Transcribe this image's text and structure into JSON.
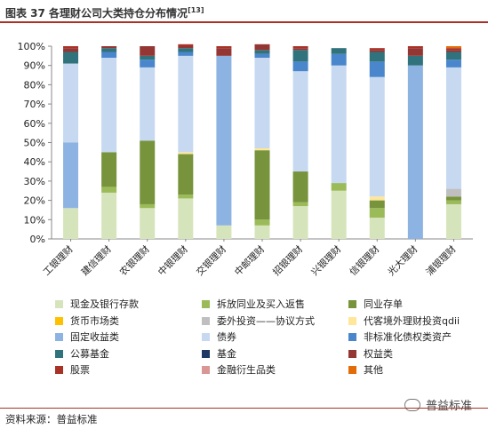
{
  "header": {
    "title": "图表 37 各理财公司大类持仓分布情况",
    "title_sup": "[13]"
  },
  "footer": {
    "source": "资料来源：普益标准",
    "watermark": "普益标准"
  },
  "chart_data": {
    "type": "bar",
    "stacked": true,
    "categories": [
      "工银理财",
      "建信理财",
      "农银理财",
      "中银理财",
      "交银理财",
      "中邮理财",
      "招银理财",
      "兴银理财",
      "信银理财",
      "光大理财",
      "浦银理财"
    ],
    "ylim": [
      0,
      100
    ],
    "yticks": [
      "0%",
      "10%",
      "20%",
      "30%",
      "40%",
      "50%",
      "60%",
      "70%",
      "80%",
      "90%",
      "100%"
    ],
    "grid": false,
    "legend_position": "bottom",
    "series": [
      {
        "name": "现金及银行存款",
        "color": "#d6e4bc",
        "values": [
          16,
          24,
          16,
          21,
          7,
          7,
          17,
          25,
          11,
          0,
          18
        ]
      },
      {
        "name": "拆放同业及买入返售",
        "color": "#9bbb59",
        "values": [
          0,
          3,
          2,
          2,
          0,
          3,
          2,
          4,
          5,
          0,
          2
        ]
      },
      {
        "name": "同业存单",
        "color": "#77933c",
        "values": [
          0,
          18,
          33,
          21,
          0,
          36,
          16,
          0,
          4,
          0,
          2
        ]
      },
      {
        "name": "货币市场类",
        "color": "#ffc000",
        "values": [
          0,
          0,
          0,
          0,
          0,
          0,
          0,
          0,
          0,
          0,
          0
        ]
      },
      {
        "name": "委外投资——协议方式",
        "color": "#bfbfbf",
        "values": [
          0,
          0,
          0,
          0,
          0,
          0,
          0,
          0,
          0,
          0,
          4
        ]
      },
      {
        "name": "代客境外理财投资qdii",
        "color": "#ffe699",
        "values": [
          0,
          0,
          0,
          1,
          0,
          1,
          0,
          0,
          2,
          0,
          0
        ]
      },
      {
        "name": "固定收益类",
        "color": "#8db3e2",
        "values": [
          34,
          0,
          0,
          0,
          88,
          0,
          0,
          0,
          0,
          90,
          0
        ]
      },
      {
        "name": "债券",
        "color": "#c6d9f1",
        "values": [
          41,
          49,
          38,
          50,
          0,
          47,
          52,
          61,
          62,
          0,
          63
        ]
      },
      {
        "name": "非标准化债权类资产",
        "color": "#4a86cb",
        "values": [
          0,
          3,
          4,
          2,
          0,
          2,
          5,
          6,
          8,
          0,
          4
        ]
      },
      {
        "name": "公募基金",
        "color": "#31737c",
        "values": [
          6,
          2,
          2,
          2,
          0,
          2,
          6,
          3,
          5,
          5,
          4
        ]
      },
      {
        "name": "基金",
        "color": "#1f3864",
        "values": [
          0,
          0,
          0,
          0,
          0,
          0,
          0,
          0,
          0,
          0,
          0
        ]
      },
      {
        "name": "权益类",
        "color": "#943634",
        "values": [
          2,
          1,
          5,
          1,
          4,
          3,
          1,
          0,
          1,
          4,
          1
        ]
      },
      {
        "name": "股票",
        "color": "#a93226",
        "values": [
          1,
          0,
          0,
          1,
          1,
          0,
          1,
          0,
          1,
          1,
          1
        ]
      },
      {
        "name": "金融衍生品类",
        "color": "#d99694",
        "values": [
          0,
          0,
          0,
          0,
          0,
          0,
          0,
          0,
          0,
          0,
          0
        ]
      },
      {
        "name": "其他",
        "color": "#e36c09",
        "values": [
          0,
          0,
          0,
          0,
          0,
          0,
          0,
          0,
          0,
          0,
          1
        ]
      }
    ]
  }
}
